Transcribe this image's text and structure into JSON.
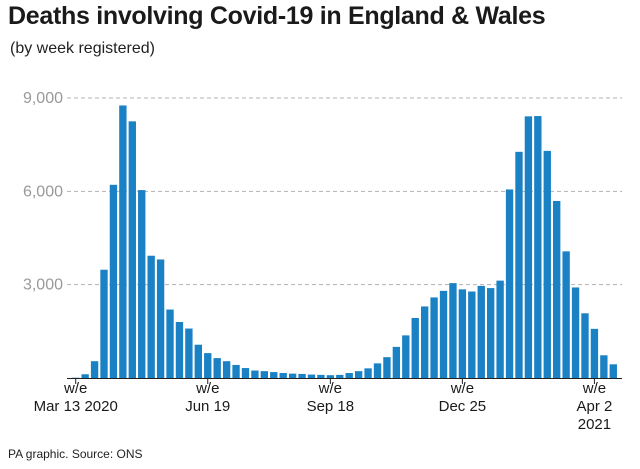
{
  "header": {
    "title": "Deaths involving Covid-19 in England & Wales",
    "subtitle": "(by week registered)"
  },
  "footer": {
    "source": "PA graphic. Source: ONS"
  },
  "colors": {
    "bar": "#1a82c4",
    "grid": "#b3b3b3",
    "axis": "#222222",
    "tick_text": "#999999"
  },
  "chart_data": {
    "type": "bar",
    "title": "Deaths involving Covid-19 in England & Wales",
    "subtitle": "(by week registered)",
    "xlabel": "",
    "ylabel": "",
    "ylim": [
      0,
      9000
    ],
    "yticks": [
      3000,
      6000,
      9000
    ],
    "ytick_labels": [
      "3,000",
      "6,000",
      "9,000"
    ],
    "grid": "horizontal dashed",
    "x_tick_labels": [
      {
        "index": 0,
        "lines": [
          "w/e",
          "Mar 13 2020"
        ]
      },
      {
        "index": 14,
        "lines": [
          "w/e",
          "Jun 19"
        ]
      },
      {
        "index": 27,
        "lines": [
          "w/e",
          "Sep 18"
        ]
      },
      {
        "index": 41,
        "lines": [
          "w/e",
          "Dec 25"
        ]
      },
      {
        "index": 55,
        "lines": [
          "w/e",
          "Apr 2",
          "2021"
        ]
      }
    ],
    "values": [
      10,
      120,
      540,
      3480,
      6210,
      8760,
      8250,
      6040,
      3930,
      3810,
      2200,
      1800,
      1590,
      1070,
      800,
      640,
      540,
      420,
      320,
      240,
      220,
      190,
      160,
      140,
      130,
      110,
      100,
      90,
      100,
      160,
      220,
      310,
      470,
      670,
      1000,
      1370,
      1930,
      2300,
      2590,
      2800,
      3050,
      2850,
      2780,
      2960,
      2890,
      3130,
      6060,
      7270,
      8410,
      8420,
      7300,
      5690,
      4070,
      2910,
      2080,
      1580,
      730,
      440
    ]
  }
}
